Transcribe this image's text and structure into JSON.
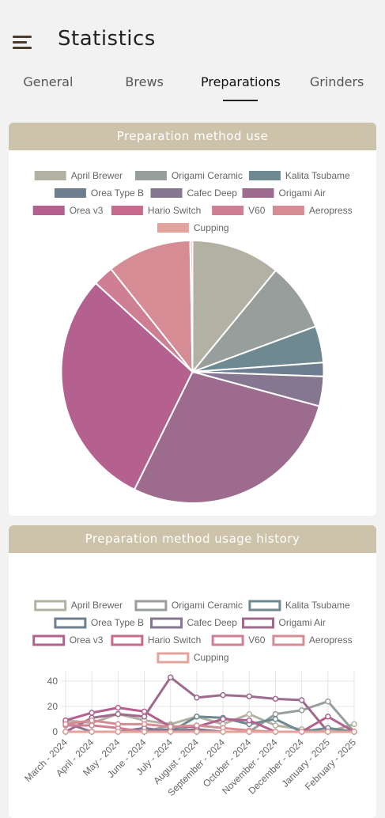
{
  "app": {
    "title": "Statistics"
  },
  "tabs": [
    {
      "label": "General"
    },
    {
      "label": "Brews"
    },
    {
      "label": "Preparations"
    },
    {
      "label": "Grinders"
    }
  ],
  "active_tab": "Preparations",
  "colors": {
    "card_header": "#cdc3ab",
    "background": "#f2f2f2",
    "menu_icon": "#4a3b2c"
  },
  "icons": {
    "menu": "hamburger-menu-icon"
  },
  "cards": {
    "pie": {
      "title": "Preparation method use"
    },
    "history": {
      "title": "Preparation method usage history"
    }
  },
  "legend": [
    {
      "name": "April Brewer",
      "color": "#b2b1a3"
    },
    {
      "name": "Origami Ceramic",
      "color": "#979e9b"
    },
    {
      "name": "Kalita Tsubame",
      "color": "#6e8990"
    },
    {
      "name": "Orea Type B",
      "color": "#6e7e91"
    },
    {
      "name": "Cafec Deep",
      "color": "#87768f"
    },
    {
      "name": "Origami Air",
      "color": "#9c6b8d"
    },
    {
      "name": "Orea v3",
      "color": "#b4618f"
    },
    {
      "name": "Hario Switch",
      "color": "#c66b8e"
    },
    {
      "name": "V60",
      "color": "#cf7f93"
    },
    {
      "name": "Aeropress",
      "color": "#d58c95"
    },
    {
      "name": "Cupping",
      "color": "#e2a39c"
    }
  ],
  "chart_data": [
    {
      "type": "pie",
      "title": "Preparation method use",
      "labels": [
        "April Brewer",
        "Origami Ceramic",
        "Kalita Tsubame",
        "Orea Type B",
        "Cafec Deep",
        "Origami Air",
        "Orea v3",
        "Hario Switch",
        "V60",
        "Aeropress",
        "Cupping"
      ],
      "values": [
        39,
        30,
        16,
        6,
        13,
        100,
        105,
        0,
        9,
        37,
        1
      ],
      "legend_position": "top"
    },
    {
      "type": "line",
      "title": "Preparation method usage history",
      "x": [
        "March - 2024",
        "April - 2024",
        "May - 2024",
        "June - 2024",
        "July - 2024",
        "August - 2024",
        "September - 2024",
        "October - 2024",
        "November - 2024",
        "December - 2024",
        "January - 2025",
        "February - 2025"
      ],
      "ylim": [
        0,
        48
      ],
      "yticks": [
        0,
        20,
        40
      ],
      "grid": true,
      "legend_position": "top",
      "series": [
        {
          "name": "April Brewer",
          "values": [
            9,
            7,
            14,
            9,
            6,
            12,
            6,
            14,
            5,
            2,
            0,
            6
          ]
        },
        {
          "name": "Origami Ceramic",
          "values": [
            0,
            0,
            0,
            0,
            5,
            0,
            0,
            0,
            14,
            17,
            24,
            0
          ]
        },
        {
          "name": "Kalita Tsubame",
          "values": [
            0,
            0,
            0,
            0,
            0,
            12,
            11,
            6,
            10,
            0,
            3,
            0
          ]
        },
        {
          "name": "Orea Type B",
          "values": [
            0,
            0,
            0,
            0,
            2,
            0,
            0,
            0,
            0,
            0,
            0,
            0
          ]
        },
        {
          "name": "Cafec Deep",
          "values": [
            7,
            0,
            0,
            3,
            0,
            2,
            0,
            0,
            0,
            0,
            0,
            0
          ]
        },
        {
          "name": "Origami Air",
          "values": [
            0,
            11,
            14,
            12,
            43,
            27,
            29,
            28,
            26,
            25,
            0,
            0
          ]
        },
        {
          "name": "Orea v3",
          "values": [
            9,
            15,
            19,
            16,
            4,
            4,
            10,
            9,
            0,
            0,
            12,
            0
          ]
        },
        {
          "name": "Hario Switch",
          "values": [
            0,
            0,
            0,
            0,
            0,
            0,
            0,
            0,
            0,
            0,
            0,
            0
          ]
        },
        {
          "name": "V60",
          "values": [
            5,
            5,
            3,
            0,
            0,
            0,
            0,
            0,
            0,
            0,
            0,
            0
          ]
        },
        {
          "name": "Aeropress",
          "values": [
            6,
            9,
            6,
            6,
            4,
            5,
            3,
            1,
            0,
            0,
            0,
            0
          ]
        },
        {
          "name": "Cupping",
          "values": [
            0,
            0,
            0,
            0,
            0,
            0,
            0,
            0,
            0,
            0,
            0,
            0
          ]
        }
      ]
    }
  ]
}
